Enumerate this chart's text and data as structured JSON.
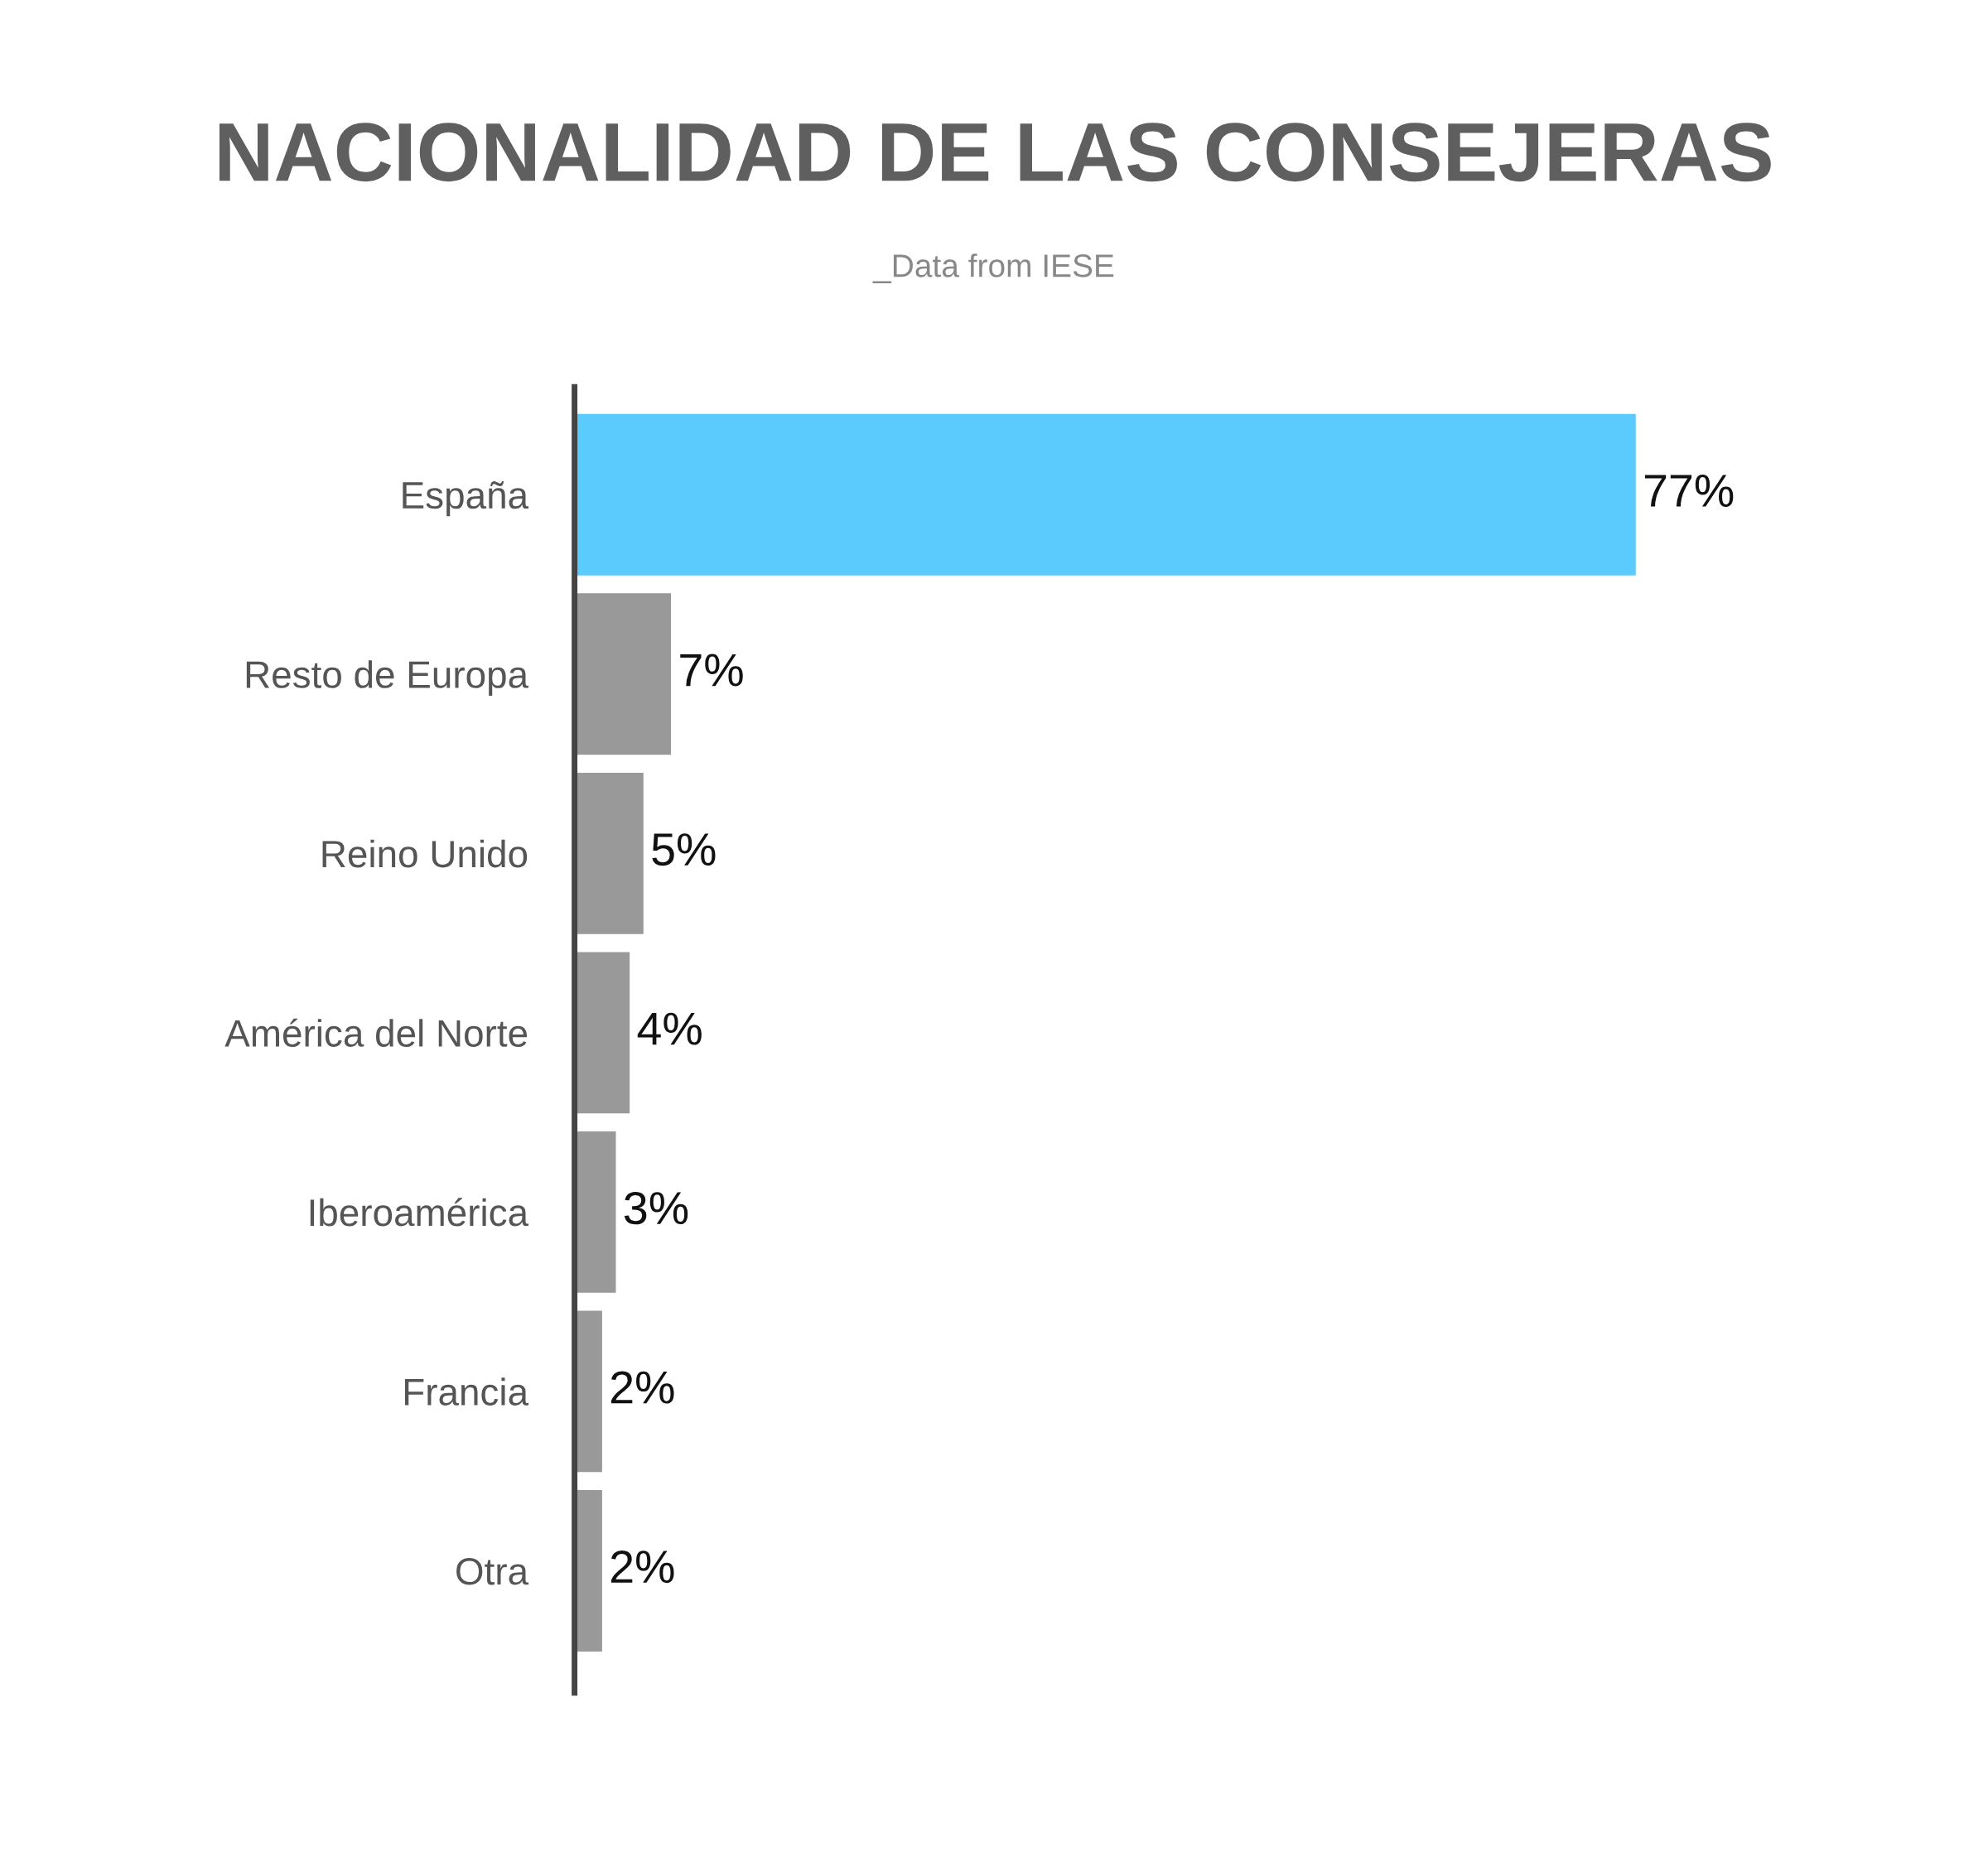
{
  "chart_data": {
    "type": "bar",
    "orientation": "horizontal",
    "title": "NACIONALIDAD DE LAS CONSEJERAS",
    "subtitle": "_Data from IESE",
    "categories": [
      "España",
      "Resto de Europa",
      "Reino Unido",
      "América del Norte",
      "Iberoamérica",
      "Francia",
      "Otra"
    ],
    "values": [
      77,
      7,
      5,
      4,
      3,
      2,
      2
    ],
    "colors": [
      "#5bcbfd",
      "#999999",
      "#999999",
      "#999999",
      "#999999",
      "#999999",
      "#999999"
    ],
    "value_labels": [
      "77%",
      "7%",
      "5%",
      "4%",
      "3%",
      "2%",
      "2%"
    ],
    "grid": false,
    "legend": false
  }
}
